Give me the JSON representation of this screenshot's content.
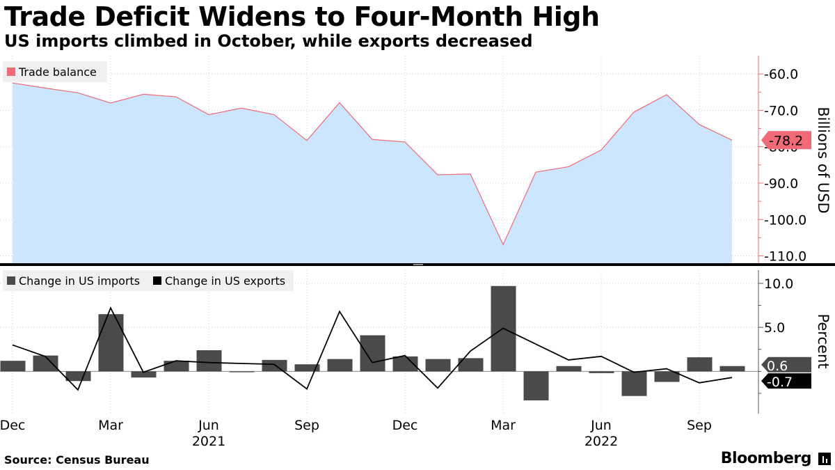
{
  "title": "Trade Deficit Widens to Four-Month High",
  "subtitle": "US imports climbed in October, while exports decreased",
  "source": "Source: Census Bureau",
  "brand": "Bloomberg",
  "colors": {
    "balance_line": "#f06a77",
    "balance_fill": "#cce6ff",
    "imports_bar": "#4a4a4a",
    "exports_line": "#000000",
    "legend_bg": "#f0f0f0",
    "axis_line": "#f06a77"
  },
  "x_tick_labels": [
    {
      "label": "Dec",
      "index": 0
    },
    {
      "label": "Mar",
      "index": 3
    },
    {
      "label": "Jun",
      "index": 6
    },
    {
      "label": "Sep",
      "index": 9
    },
    {
      "label": "Dec",
      "index": 12
    },
    {
      "label": "Mar",
      "index": 15
    },
    {
      "label": "Jun",
      "index": 18
    },
    {
      "label": "Sep",
      "index": 21
    }
  ],
  "x_year_labels": [
    {
      "label": "2021",
      "index": 6
    },
    {
      "label": "2022",
      "index": 18
    }
  ],
  "chart_data": [
    {
      "type": "area",
      "x": [
        "Dec 2020",
        "Jan 2021",
        "Feb 2021",
        "Mar 2021",
        "Apr 2021",
        "May 2021",
        "Jun 2021",
        "Jul 2021",
        "Aug 2021",
        "Sep 2021",
        "Oct 2021",
        "Nov 2021",
        "Dec 2021",
        "Jan 2022",
        "Feb 2022",
        "Mar 2022",
        "Apr 2022",
        "May 2022",
        "Jun 2022",
        "Jul 2022",
        "Aug 2022",
        "Sep 2022",
        "Oct 2022"
      ],
      "series": [
        {
          "name": "Trade balance",
          "values": [
            -62.5,
            -63.9,
            -65.2,
            -68.0,
            -65.6,
            -66.3,
            -71.2,
            -69.4,
            -71.2,
            -78.3,
            -67.9,
            -78.0,
            -78.7,
            -87.7,
            -87.5,
            -106.9,
            -87.0,
            -85.5,
            -80.9,
            -70.5,
            -65.7,
            -73.9,
            -78.2
          ]
        }
      ],
      "last_value_label": "-78.2",
      "ylabel": "Billions of USD",
      "ylim": [
        -112,
        -55
      ],
      "yticks": [
        -60.0,
        -70.0,
        -80.0,
        -90.0,
        -100.0,
        -110.0
      ],
      "ytick_labels": [
        "-60.0",
        "-70.0",
        "-80.0",
        "-90.0",
        "-100.0",
        "-110.0"
      ],
      "legend": "top-left"
    },
    {
      "type": "bar",
      "x": [
        "Dec 2020",
        "Jan 2021",
        "Feb 2021",
        "Mar 2021",
        "Apr 2021",
        "May 2021",
        "Jun 2021",
        "Jul 2021",
        "Aug 2021",
        "Sep 2021",
        "Oct 2021",
        "Nov 2021",
        "Dec 2021",
        "Jan 2022",
        "Feb 2022",
        "Mar 2022",
        "Apr 2022",
        "May 2022",
        "Jun 2022",
        "Jul 2022",
        "Aug 2022",
        "Sep 2022",
        "Oct 2022"
      ],
      "series": [
        {
          "name": "Change in US imports",
          "kind": "bar",
          "values": [
            1.2,
            1.8,
            -1.1,
            6.5,
            -0.7,
            1.2,
            2.4,
            -0.1,
            1.3,
            0.8,
            1.4,
            4.1,
            1.7,
            1.4,
            1.5,
            9.7,
            -3.3,
            0.6,
            -0.2,
            -2.8,
            -1.2,
            1.6,
            0.6
          ]
        },
        {
          "name": "Change in US exports",
          "kind": "line",
          "values": [
            3.0,
            1.7,
            -2.1,
            7.2,
            -0.1,
            1.2,
            1.0,
            0.9,
            0.8,
            -2.0,
            6.8,
            1.0,
            1.8,
            -1.9,
            2.3,
            4.9,
            3.1,
            1.3,
            1.7,
            -0.1,
            0.3,
            -1.3,
            -0.7
          ]
        }
      ],
      "last_value_labels": [
        "0.6",
        "-0.7"
      ],
      "ylabel": "Percent",
      "ylim": [
        -4.8,
        11.5
      ],
      "yticks": [
        10.0,
        5.0
      ],
      "ytick_labels": [
        "10.0",
        "5.0"
      ],
      "legend": "top-left"
    }
  ]
}
